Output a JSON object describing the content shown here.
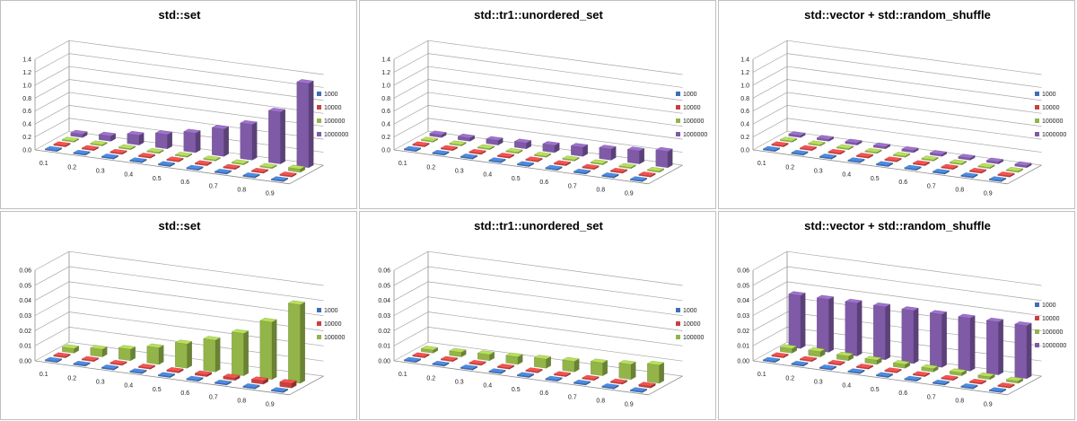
{
  "palette": {
    "1000": "#3d6fb8",
    "10000": "#c8413f",
    "100000": "#93b448",
    "1000000": "#7f5aa6"
  },
  "chart_data": [
    {
      "type": "bar",
      "title": "std::set",
      "categories": [
        "0.1",
        "0.2",
        "0.3",
        "0.4",
        "0.5",
        "0.6",
        "0.7",
        "0.8",
        "0.9"
      ],
      "ylim": [
        0,
        1.4
      ],
      "yticks": [
        "0.0",
        "0.2",
        "0.4",
        "0.6",
        "0.8",
        "1.0",
        "1.2",
        "1.4"
      ],
      "legend_position": "right",
      "series": [
        {
          "name": "1000",
          "values": [
            0,
            0,
            0,
            0,
            0,
            0,
            0,
            0,
            0
          ]
        },
        {
          "name": "10000",
          "values": [
            0,
            0,
            0,
            0,
            0,
            0,
            0,
            0,
            0
          ]
        },
        {
          "name": "100000",
          "values": [
            0,
            0,
            0,
            0,
            0,
            0,
            0.002,
            0.01,
            0.05
          ]
        },
        {
          "name": "1000000",
          "values": [
            0.05,
            0.08,
            0.15,
            0.22,
            0.3,
            0.42,
            0.55,
            0.8,
            1.3
          ]
        }
      ]
    },
    {
      "type": "bar",
      "title": "std::tr1::unordered_set",
      "categories": [
        "0.1",
        "0.2",
        "0.3",
        "0.4",
        "0.5",
        "0.6",
        "0.7",
        "0.8",
        "0.9"
      ],
      "ylim": [
        0,
        1.4
      ],
      "yticks": [
        "0.0",
        "0.2",
        "0.4",
        "0.6",
        "0.8",
        "1.0",
        "1.2",
        "1.4"
      ],
      "legend_position": "right",
      "series": [
        {
          "name": "1000",
          "values": [
            0,
            0,
            0,
            0,
            0,
            0,
            0,
            0,
            0
          ]
        },
        {
          "name": "10000",
          "values": [
            0,
            0,
            0,
            0,
            0,
            0,
            0,
            0,
            0
          ]
        },
        {
          "name": "100000",
          "values": [
            0,
            0,
            0,
            0,
            0,
            0,
            0,
            0,
            0
          ]
        },
        {
          "name": "1000000",
          "values": [
            0.04,
            0.05,
            0.07,
            0.09,
            0.11,
            0.14,
            0.17,
            0.2,
            0.25
          ]
        }
      ]
    },
    {
      "type": "bar",
      "title": "std::vector + std::random_shuffle",
      "categories": [
        "0.1",
        "0.2",
        "0.3",
        "0.4",
        "0.5",
        "0.6",
        "0.7",
        "0.8",
        "0.9"
      ],
      "ylim": [
        0,
        1.4
      ],
      "yticks": [
        "0.0",
        "0.2",
        "0.4",
        "0.6",
        "0.8",
        "1.0",
        "1.2",
        "1.4"
      ],
      "legend_position": "right",
      "series": [
        {
          "name": "1000",
          "values": [
            0,
            0,
            0,
            0,
            0,
            0,
            0,
            0,
            0
          ]
        },
        {
          "name": "10000",
          "values": [
            0,
            0,
            0,
            0,
            0,
            0,
            0,
            0,
            0
          ]
        },
        {
          "name": "100000",
          "values": [
            0,
            0,
            0,
            0,
            0,
            0,
            0,
            0,
            0
          ]
        },
        {
          "name": "1000000",
          "values": [
            0.03,
            0.03,
            0.03,
            0.03,
            0.03,
            0.03,
            0.03,
            0.03,
            0.03
          ]
        }
      ]
    },
    {
      "type": "bar",
      "title": "std::set",
      "categories": [
        "0.1",
        "0.2",
        "0.3",
        "0.4",
        "0.5",
        "0.6",
        "0.7",
        "0.8",
        "0.9"
      ],
      "ylim": [
        0,
        0.06
      ],
      "yticks": [
        "0.00",
        "0.01",
        "0.02",
        "0.03",
        "0.04",
        "0.05",
        "0.06"
      ],
      "legend_position": "right",
      "series": [
        {
          "name": "1000",
          "values": [
            0,
            0,
            0,
            0,
            0,
            0,
            0,
            0,
            0.0005
          ]
        },
        {
          "name": "10000",
          "values": [
            0.0003,
            0.0004,
            0.0005,
            0.0007,
            0.0009,
            0.0012,
            0.0016,
            0.0022,
            0.003
          ]
        },
        {
          "name": "100000",
          "values": [
            0.003,
            0.005,
            0.0075,
            0.011,
            0.016,
            0.021,
            0.028,
            0.038,
            0.052
          ]
        }
      ]
    },
    {
      "type": "bar",
      "title": "std::tr1::unordered_set",
      "categories": [
        "0.1",
        "0.2",
        "0.3",
        "0.4",
        "0.5",
        "0.6",
        "0.7",
        "0.8",
        "0.9"
      ],
      "ylim": [
        0,
        0.06
      ],
      "yticks": [
        "0.00",
        "0.01",
        "0.02",
        "0.03",
        "0.04",
        "0.05",
        "0.06"
      ],
      "legend_position": "right",
      "series": [
        {
          "name": "1000",
          "values": [
            0,
            0,
            0,
            0,
            0,
            0,
            0,
            0,
            0
          ]
        },
        {
          "name": "10000",
          "values": [
            0,
            0,
            0,
            0,
            0,
            0,
            0.0005,
            0.0008,
            0.0012
          ]
        },
        {
          "name": "100000",
          "values": [
            0.002,
            0.003,
            0.004,
            0.005,
            0.006,
            0.007,
            0.0085,
            0.01,
            0.012
          ]
        }
      ]
    },
    {
      "type": "bar",
      "title": "std::vector + std::random_shuffle",
      "categories": [
        "0.1",
        "0.2",
        "0.3",
        "0.4",
        "0.5",
        "0.6",
        "0.7",
        "0.8",
        "0.9"
      ],
      "ylim": [
        0,
        0.06
      ],
      "yticks": [
        "0.00",
        "0.01",
        "0.02",
        "0.03",
        "0.04",
        "0.05",
        "0.06"
      ],
      "legend_position": "right",
      "series": [
        {
          "name": "1000",
          "values": [
            0,
            0,
            0,
            0,
            0,
            0,
            0,
            0,
            0
          ]
        },
        {
          "name": "10000",
          "values": [
            0,
            0,
            0,
            0,
            0,
            0,
            0,
            0,
            0
          ]
        },
        {
          "name": "100000",
          "values": [
            0.003,
            0.0035,
            0.003,
            0.0028,
            0.0025,
            0.0022,
            0.002,
            0.0018,
            0.0015
          ]
        },
        {
          "name": "1000000",
          "values": [
            0.035,
            0.035,
            0.035,
            0.035,
            0.035,
            0.035,
            0.035,
            0.035,
            0.035
          ]
        }
      ]
    }
  ]
}
